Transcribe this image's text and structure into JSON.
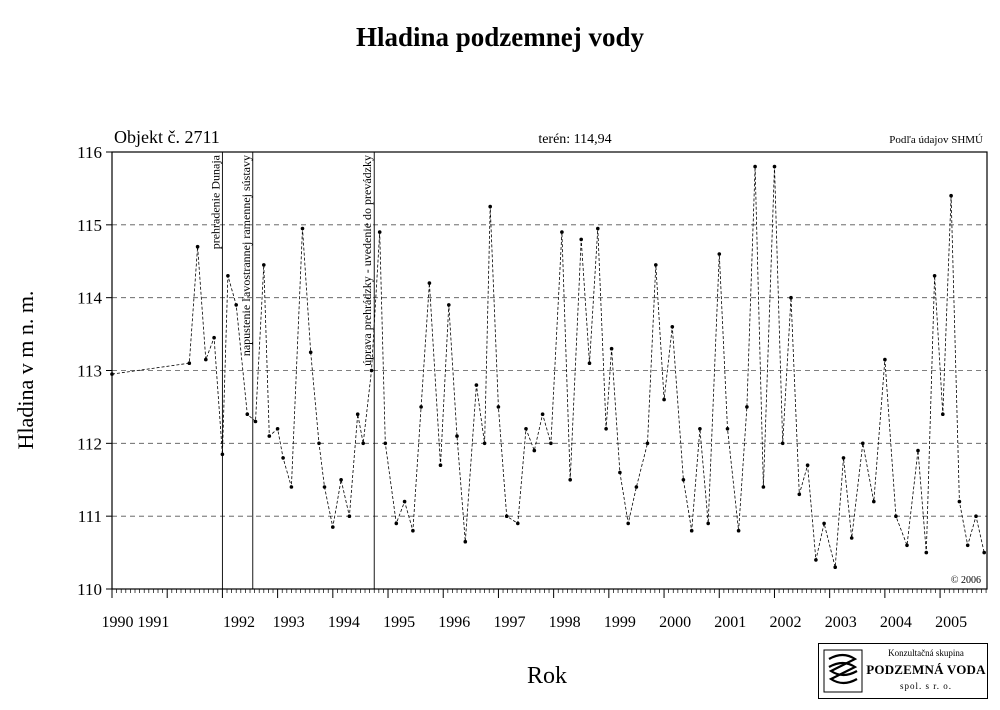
{
  "page": {
    "title": "Hladina podzemnej vody",
    "object_label": "Objekt č. 2711",
    "terrain_label": "terén: 114,94",
    "source_label": "Podľa údajov SHMÚ",
    "copyright": "© 2006"
  },
  "logo": {
    "line1": "Konzultačná skupina",
    "line2": "PODZEMNÁ VODA",
    "line3": "spol. s r. o."
  },
  "colors": {
    "series": "#000000",
    "grid": "#555555",
    "axis": "#000000"
  },
  "chart_data": {
    "type": "line",
    "title": "Hladina podzemnej vody",
    "xlabel": "Rok",
    "ylabel": "Hladina v m n. m.",
    "ylim": [
      110,
      116
    ],
    "yticks": [
      110,
      111,
      112,
      113,
      114,
      115,
      116
    ],
    "xlim": [
      1990.0,
      2005.85
    ],
    "xticks": [
      {
        "label": "1990",
        "x": 1990.1
      },
      {
        "label": "1991",
        "x": 1990.75
      },
      {
        "label": "1992",
        "x": 1992.3
      },
      {
        "label": "1993",
        "x": 1993.2
      },
      {
        "label": "1994",
        "x": 1994.2
      },
      {
        "label": "1995",
        "x": 1995.2
      },
      {
        "label": "1996",
        "x": 1996.2
      },
      {
        "label": "1997",
        "x": 1997.2
      },
      {
        "label": "1998",
        "x": 1998.2
      },
      {
        "label": "1999",
        "x": 1999.2
      },
      {
        "label": "2000",
        "x": 2000.2
      },
      {
        "label": "2001",
        "x": 2001.2
      },
      {
        "label": "2002",
        "x": 2002.2
      },
      {
        "label": "2003",
        "x": 2003.2
      },
      {
        "label": "2004",
        "x": 2004.2
      },
      {
        "label": "2005",
        "x": 2005.2
      }
    ],
    "grid": "horizontal dashed",
    "events": [
      {
        "label": "prehradenie Dunaja",
        "x": 1992.0
      },
      {
        "label": "napustenie ľavostrannej ramennej sústavy",
        "x": 1992.55
      },
      {
        "label": "úprava prehrádzky - uvedenie do prevádzky",
        "x": 1994.75
      }
    ],
    "series": [
      {
        "x": [
          1990.0,
          1991.4,
          1991.55,
          1991.7,
          1991.85,
          1992.0,
          1992.1,
          1992.25,
          1992.45,
          1992.6,
          1992.75,
          1992.85,
          1993.0,
          1993.1,
          1993.25,
          1993.45,
          1993.6,
          1993.75,
          1993.85,
          1994.0,
          1994.15,
          1994.3,
          1994.45,
          1994.55,
          1994.7,
          1994.85,
          1994.95,
          1995.15,
          1995.3,
          1995.45,
          1995.6,
          1995.75,
          1995.95,
          1996.1,
          1996.25,
          1996.4,
          1996.6,
          1996.75,
          1996.85,
          1997.0,
          1997.15,
          1997.35,
          1997.5,
          1997.65,
          1997.8,
          1997.95,
          1998.15,
          1998.3,
          1998.5,
          1998.65,
          1998.8,
          1998.95,
          1999.05,
          1999.2,
          1999.35,
          1999.5,
          1999.7,
          1999.85,
          2000.0,
          2000.15,
          2000.35,
          2000.5,
          2000.65,
          2000.8,
          2001.0,
          2001.15,
          2001.35,
          2001.5,
          2001.65,
          2001.8,
          2002.0,
          2002.15,
          2002.3,
          2002.45,
          2002.6,
          2002.75,
          2002.9,
          2003.1,
          2003.25,
          2003.4,
          2003.6,
          2003.8,
          2004.0,
          2004.2,
          2004.4,
          2004.6,
          2004.75,
          2004.9,
          2005.05,
          2005.2,
          2005.35,
          2005.5,
          2005.65,
          2005.8
        ],
        "y": [
          112.95,
          113.1,
          114.7,
          113.15,
          113.45,
          111.85,
          114.3,
          113.9,
          112.4,
          112.3,
          114.45,
          112.1,
          112.2,
          111.8,
          111.4,
          114.95,
          113.25,
          112.0,
          111.4,
          110.85,
          111.5,
          111.0,
          112.4,
          112.0,
          113.0,
          114.9,
          112.0,
          110.9,
          111.2,
          110.8,
          112.5,
          114.2,
          111.7,
          113.9,
          112.1,
          110.65,
          112.8,
          112.0,
          115.25,
          112.5,
          111.0,
          110.9,
          112.2,
          111.9,
          112.4,
          112.0,
          114.9,
          111.5,
          114.8,
          113.1,
          114.95,
          112.2,
          113.3,
          111.6,
          110.9,
          111.4,
          112.0,
          114.45,
          112.6,
          113.6,
          111.5,
          110.8,
          112.2,
          110.9,
          114.6,
          112.2,
          110.8,
          112.5,
          115.8,
          111.4,
          115.8,
          112.0,
          114.0,
          111.3,
          111.7,
          110.4,
          110.9,
          110.3,
          111.8,
          110.7,
          112.0,
          111.2,
          113.15,
          111.0,
          110.6,
          111.9,
          110.5,
          114.3,
          112.4,
          115.4,
          111.2,
          110.6,
          111.0,
          110.5
        ]
      }
    ]
  }
}
